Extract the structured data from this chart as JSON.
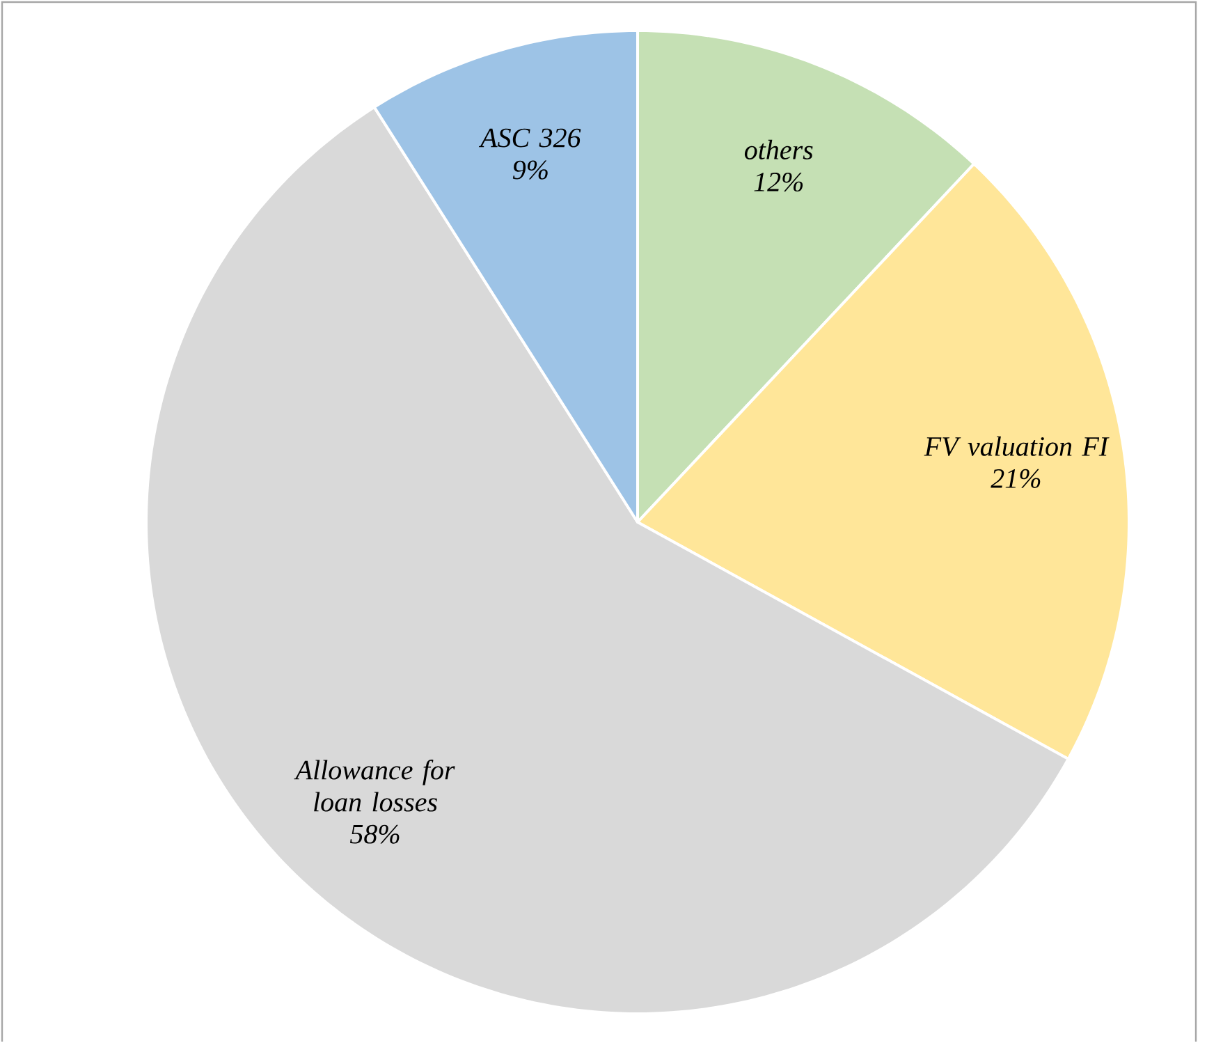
{
  "chart_data": {
    "type": "pie",
    "categories": [
      "others",
      "FV valuation FI",
      "Allowance for loan losses",
      "ASC 326"
    ],
    "values": [
      12,
      21,
      58,
      9
    ],
    "value_labels": [
      "12%",
      "21%",
      "58%",
      "9%"
    ],
    "colors": [
      "#c5e0b4",
      "#ffe699",
      "#d9d9d9",
      "#9dc3e6"
    ]
  }
}
